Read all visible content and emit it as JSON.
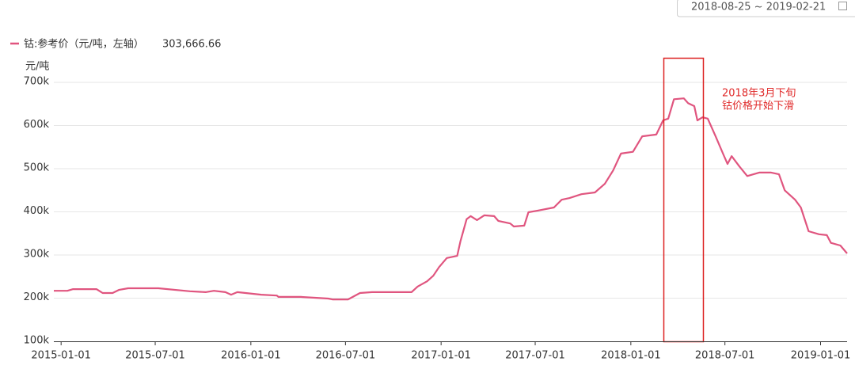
{
  "chart_data": {
    "type": "line",
    "date_range": "2018-08-25 ~ 2019-02-21",
    "y_unit": "元/吨",
    "annotation": [
      "2018年3月下旬",
      "钴价格开始下滑"
    ],
    "annotation_color": "#e02a2a",
    "grid": true,
    "xlim": [
      "2014-12-18",
      "2019-02-21"
    ],
    "xticks": [
      "2015-01-01",
      "2015-07-01",
      "2016-01-01",
      "2016-07-01",
      "2017-01-01",
      "2017-07-01",
      "2018-01-01",
      "2018-07-01",
      "2019-01-01"
    ],
    "ylim": [
      100000,
      700000
    ],
    "yticks": [
      {
        "value": 100000,
        "label": "100k"
      },
      {
        "value": 200000,
        "label": "200k"
      },
      {
        "value": 300000,
        "label": "300k"
      },
      {
        "value": 400000,
        "label": "400k"
      },
      {
        "value": 500000,
        "label": "500k"
      },
      {
        "value": 600000,
        "label": "600k"
      },
      {
        "value": 700000,
        "label": "700k"
      }
    ],
    "x": [
      "2014-12-18",
      "2015-01-13",
      "2015-01-24",
      "2015-03-10",
      "2015-03-22",
      "2015-04-10",
      "2015-04-22",
      "2015-05-10",
      "2015-07-07",
      "2015-09-06",
      "2015-10-06",
      "2015-10-22",
      "2015-11-13",
      "2015-11-24",
      "2015-12-06",
      "2016-01-21",
      "2016-02-20",
      "2016-02-23",
      "2016-04-06",
      "2016-05-29",
      "2016-06-06",
      "2016-07-06",
      "2016-07-29",
      "2016-08-21",
      "2016-11-05",
      "2016-11-17",
      "2016-12-05",
      "2016-12-17",
      "2016-12-28",
      "2017-01-12",
      "2017-02-01",
      "2017-02-07",
      "2017-02-19",
      "2017-02-27",
      "2017-03-11",
      "2017-03-25",
      "2017-04-13",
      "2017-04-21",
      "2017-05-14",
      "2017-05-21",
      "2017-06-10",
      "2017-06-18",
      "2017-07-06",
      "2017-08-06",
      "2017-08-21",
      "2017-09-05",
      "2017-09-28",
      "2017-10-24",
      "2017-11-12",
      "2017-11-28",
      "2017-12-13",
      "2018-01-05",
      "2018-01-23",
      "2018-02-19",
      "2018-03-04",
      "2018-03-14",
      "2018-03-25",
      "2018-04-13",
      "2018-04-21",
      "2018-05-03",
      "2018-05-09",
      "2018-05-19",
      "2018-05-29",
      "2018-06-13",
      "2018-06-28",
      "2018-07-06",
      "2018-07-14",
      "2018-07-29",
      "2018-08-13",
      "2018-09-05",
      "2018-09-28",
      "2018-10-13",
      "2018-10-24",
      "2018-11-13",
      "2018-11-24",
      "2018-12-09",
      "2018-12-29",
      "2019-01-13",
      "2019-01-21",
      "2019-02-08",
      "2019-02-21"
    ],
    "series": [
      {
        "name": "钴:参考价（元/吨，左轴）",
        "latest_label": "303,666.66",
        "color": "#e0557f",
        "values": [
          217000,
          217000,
          221000,
          221000,
          212000,
          212000,
          219000,
          223000,
          223000,
          216000,
          214000,
          217000,
          214000,
          208000,
          214000,
          208000,
          206000,
          203000,
          203000,
          199000,
          197000,
          197000,
          212000,
          214000,
          214000,
          227000,
          239000,
          252000,
          272000,
          293000,
          298000,
          331000,
          383000,
          390000,
          381000,
          392000,
          390000,
          379000,
          373000,
          366000,
          368000,
          399000,
          403000,
          410000,
          428000,
          432000,
          441000,
          445000,
          465000,
          496000,
          535000,
          539000,
          575000,
          579000,
          612000,
          616000,
          661000,
          663000,
          652000,
          645000,
          612000,
          619000,
          616000,
          575000,
          533000,
          511000,
          529000,
          505000,
          483000,
          491000,
          491000,
          487000,
          450000,
          428000,
          410000,
          355000,
          348000,
          346000,
          328000,
          322000,
          303667
        ]
      }
    ]
  }
}
